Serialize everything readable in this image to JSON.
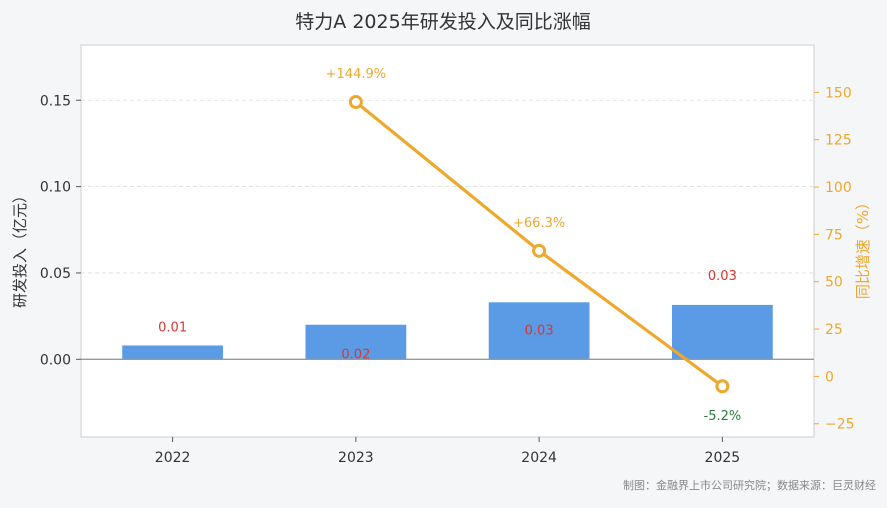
{
  "chart_data": {
    "type": "bar",
    "title": "特力A 2025年研发投入及同比涨幅",
    "categories": [
      "2022",
      "2023",
      "2024",
      "2025"
    ],
    "ylabel": "研发投入（亿元）",
    "y2label": "同比增速（%）",
    "ylim": [
      -0.045,
      0.182
    ],
    "y2lim": [
      -32,
      175
    ],
    "yticks": [
      0.0,
      0.05,
      0.1,
      0.15
    ],
    "ytick_labels": [
      "0.00",
      "0.05",
      "0.10",
      "0.15"
    ],
    "y2ticks": [
      -25,
      0,
      25,
      50,
      75,
      100,
      125,
      150
    ],
    "y2tick_labels": [
      "−25",
      "0",
      "25",
      "50",
      "75",
      "100",
      "125",
      "150"
    ],
    "grid": true,
    "series": [
      {
        "kind": "bar",
        "values": [
          0.008,
          0.02,
          0.033,
          0.0315
        ],
        "labels": [
          "0.01",
          "0.02",
          "0.03",
          "0.03"
        ],
        "color": "#5b9be6",
        "label_color": "#d9372f"
      },
      {
        "kind": "line",
        "x": [
          "2023",
          "2024",
          "2025"
        ],
        "values": [
          144.9,
          66.3,
          -5.2
        ],
        "labels": [
          "+144.9%",
          "+66.3%",
          "-5.2%"
        ],
        "color": "#eda82d",
        "negative_label_color": "#2f7d3f"
      }
    ]
  },
  "footer": {
    "source": "制图：金融界上市公司研究院；数据来源：巨灵财经"
  },
  "colors": {
    "background": "#f5f6f8",
    "plot_background": "#ffffff",
    "grid": "#dcdcdc",
    "zero_line": "#999999",
    "axis_right": "#eda82d"
  }
}
